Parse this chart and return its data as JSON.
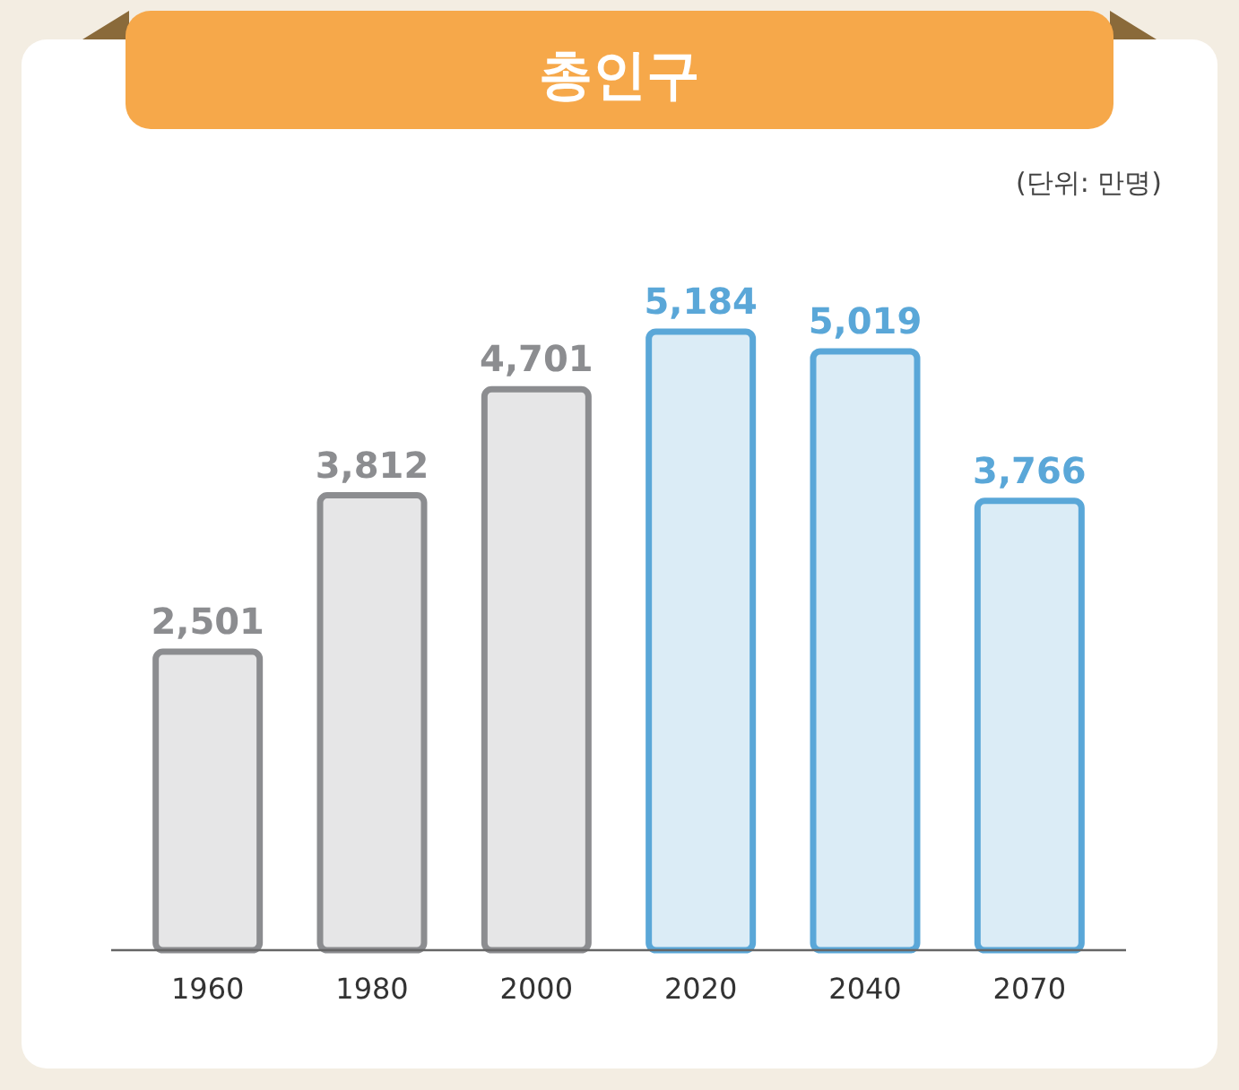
{
  "chart_data": {
    "type": "bar",
    "title": "총인구",
    "annotations": [
      "(단위: 만명)"
    ],
    "categories": [
      "1960",
      "1980",
      "2000",
      "2020",
      "2040",
      "2070"
    ],
    "values": [
      2501,
      3812,
      4701,
      5184,
      5019,
      3766
    ],
    "colors": [
      "#8c8d90",
      "#8c8d90",
      "#8c8d90",
      "#5aa7d8",
      "#5aa7d8",
      "#5aa7d8"
    ],
    "value_labels": [
      "2,501",
      "3,812",
      "4,701",
      "5,184",
      "5,019",
      "3,766"
    ]
  }
}
